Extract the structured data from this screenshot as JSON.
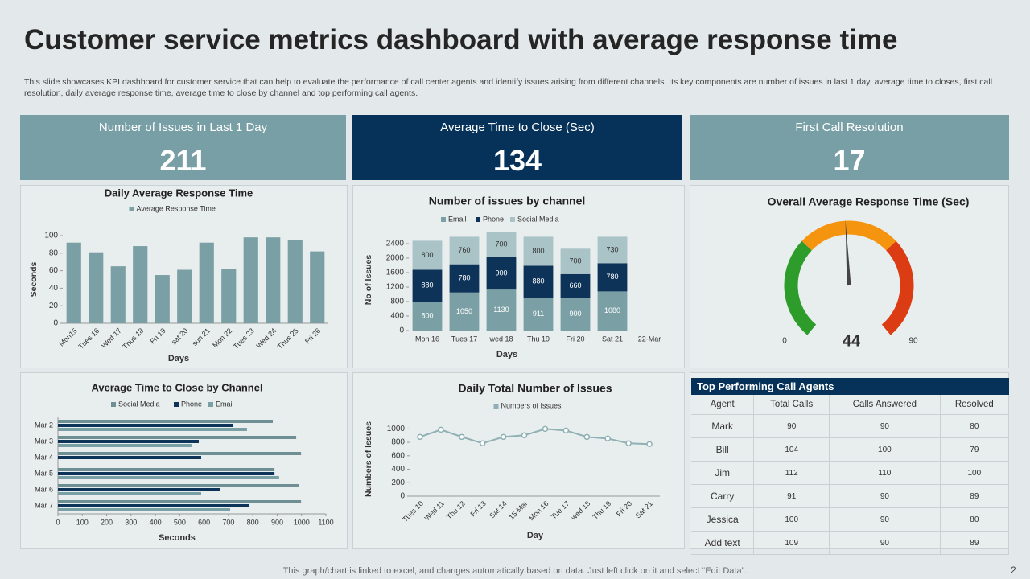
{
  "title": "Customer service metrics dashboard with average response time",
  "description": "This slide showcases KPI dashboard for customer service that can help to evaluate the performance of call center agents and identify issues arising from different channels. Its key components are number of issues in last 1 day, average time to closes, first call resolution, daily average response time, average time to close by channel and top performing call agents.",
  "kpis": [
    {
      "label": "Number of Issues in Last 1 Day",
      "value": 211,
      "color": "#789fa5"
    },
    {
      "label": "Average Time to Close (Sec)",
      "value": 134,
      "color": "#06325a"
    },
    {
      "label": "First Call Resolution",
      "value": 17,
      "color": "#789fa5"
    }
  ],
  "chart_data": [
    {
      "type": "bar",
      "title": "Daily Average Response Time",
      "categories": [
        "Mon15",
        "Tues 16",
        "Wed 17",
        "Thus 18",
        "Fri 19",
        "sat 20",
        "sun 21",
        "Mon 22",
        "Tues 23",
        "Wed 24",
        "Thus 25",
        "Fri 26"
      ],
      "series": [
        {
          "name": "Average Response Time",
          "color": "#7a9fa5",
          "values": [
            92,
            81,
            65,
            88,
            55,
            61,
            92,
            62,
            98,
            98,
            95,
            82
          ]
        }
      ],
      "ylim": [
        0,
        100
      ],
      "yticks": [
        0,
        20,
        40,
        60,
        80,
        100
      ],
      "xlabel": "Days",
      "ylabel": "Seconds"
    },
    {
      "type": "stacked_bar",
      "title": "Number of issues by channel",
      "categories": [
        "Mon 16",
        "Tues 17",
        "wed 18",
        "Thu 19",
        "Fri 20",
        "Sat 21",
        "22-Mar"
      ],
      "series": [
        {
          "name": "Email",
          "color": "#7a9fa5",
          "values": [
            800,
            1050,
            1130,
            911,
            900,
            1080,
            null
          ]
        },
        {
          "name": "Phone",
          "color": "#0d3358",
          "values": [
            880,
            780,
            900,
            880,
            660,
            780,
            null
          ]
        },
        {
          "name": "Social Media",
          "color": "#a9c3c6",
          "values": [
            800,
            760,
            700,
            800,
            700,
            730,
            null
          ]
        }
      ],
      "ylim": [
        0,
        2800
      ],
      "yticks": [
        0,
        400,
        800,
        1200,
        1600,
        2000,
        2400
      ],
      "xlabel": "Days",
      "ylabel": "No of Issues"
    },
    {
      "type": "gauge",
      "title": "Overall Average Response Time (Sec)",
      "value": 44,
      "range": [
        0,
        90
      ],
      "bands": [
        {
          "from": 0,
          "to": 30,
          "color": "#2e9c2a"
        },
        {
          "from": 30,
          "to": 60,
          "color": "#f5940f"
        },
        {
          "from": 60,
          "to": 90,
          "color": "#dc3c14"
        }
      ]
    },
    {
      "type": "hbar",
      "title": "Average  Time to Close by Channel",
      "categories": [
        "Mar 2",
        "Mar 3",
        "Mar 4",
        "Mar 5",
        "Mar 6",
        "Mar 7"
      ],
      "series": [
        {
          "name": "Social Media",
          "color": "#6f8f95",
          "values": [
            882,
            978,
            998,
            889,
            988,
            998
          ]
        },
        {
          "name": "Phone",
          "color": "#0d3358",
          "values": [
            720,
            578,
            588,
            889,
            667,
            786
          ]
        },
        {
          "name": "Email",
          "color": "#7a9fa5",
          "values": [
            776,
            548,
            null,
            908,
            588,
            707
          ]
        }
      ],
      "xlim": [
        0,
        1100
      ],
      "xticks": [
        0,
        100,
        200,
        300,
        400,
        500,
        600,
        700,
        800,
        900,
        1000,
        1100
      ],
      "xlabel": "Seconds"
    },
    {
      "type": "line",
      "title": "Daily Total Number of  Issues",
      "categories": [
        "Tues 10",
        "Wed 11",
        "Thu 12",
        "Fri 13",
        "Sat 14",
        "15-Mar",
        "Mon 16",
        "Tue 17",
        "wed 18",
        "Thu 19",
        "Fri 20",
        "Sat 21"
      ],
      "series": [
        {
          "name": "Numbers of Issues",
          "color": "#8fb0b4",
          "values": [
            881,
            988,
            881,
            786,
            881,
            905,
            1000,
            976,
            881,
            857,
            786,
            774
          ]
        }
      ],
      "ylim": [
        0,
        1100
      ],
      "yticks": [
        0,
        200,
        400,
        600,
        800,
        1000
      ],
      "xlabel": "Day",
      "ylabel": "Numbers of Issues"
    }
  ],
  "table": {
    "title": "Top Performing Call Agents",
    "columns": [
      "Agent",
      "Total Calls",
      "Calls Answered",
      "Resolved"
    ],
    "rows": [
      [
        "Mark",
        90,
        90,
        80
      ],
      [
        "Bill",
        104,
        100,
        79
      ],
      [
        "Jim",
        112,
        110,
        100
      ],
      [
        "Carry",
        91,
        90,
        89
      ],
      [
        "Jessica",
        100,
        90,
        80
      ],
      [
        "Add  text",
        109,
        90,
        89
      ]
    ]
  },
  "footer": "This graph/chart is linked to excel,  and changes automatically based on data. Just left click on it and select “Edit Data”.",
  "page_number": 2
}
